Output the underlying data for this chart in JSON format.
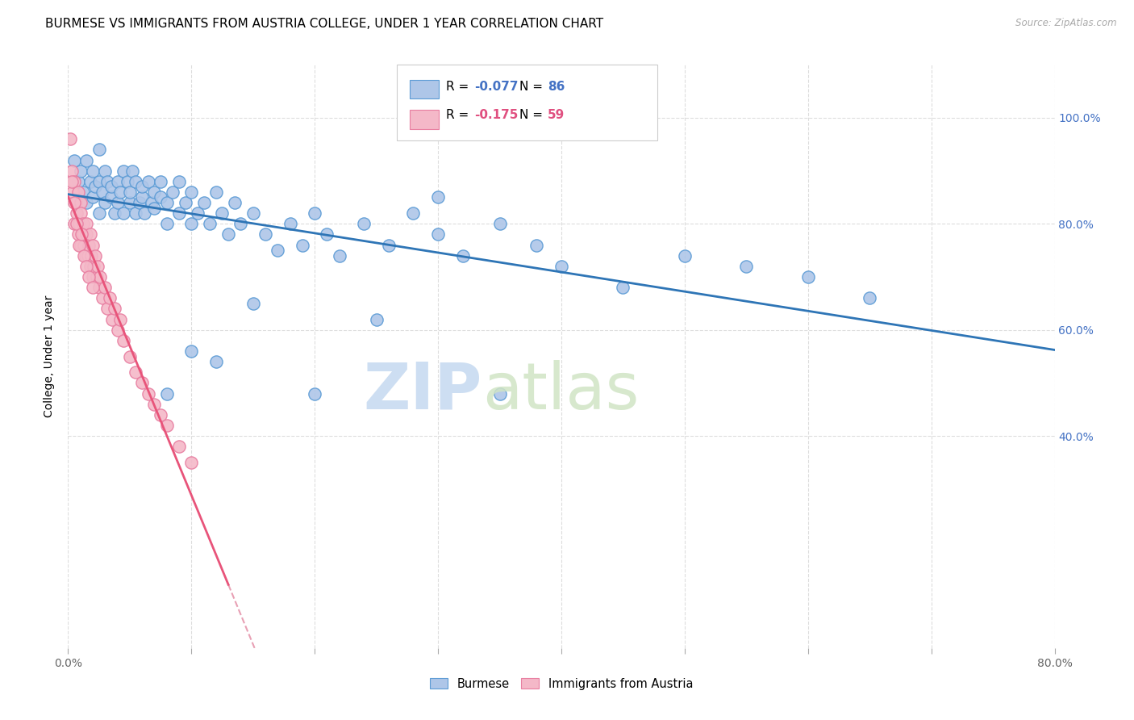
{
  "title": "BURMESE VS IMMIGRANTS FROM AUSTRIA COLLEGE, UNDER 1 YEAR CORRELATION CHART",
  "source": "Source: ZipAtlas.com",
  "ylabel_label": "College, Under 1 year",
  "blue_R": -0.077,
  "blue_N": 86,
  "pink_R": -0.175,
  "pink_N": 59,
  "blue_color": "#AEC6E8",
  "blue_edge_color": "#5B9BD5",
  "pink_color": "#F4B8C8",
  "pink_edge_color": "#E87DA0",
  "blue_line_color": "#2E75B6",
  "pink_line_color": "#E8547A",
  "dashed_line_color": "#E8A0B4",
  "watermark_zip_color": "#C5D9F0",
  "watermark_atlas_color": "#D0E8C5",
  "right_axis_color": "#4472C4",
  "xmin": 0.0,
  "xmax": 0.8,
  "ymin": 0.0,
  "ymax": 1.1,
  "blue_scatter_x": [
    0.005,
    0.008,
    0.01,
    0.012,
    0.015,
    0.015,
    0.018,
    0.02,
    0.02,
    0.022,
    0.025,
    0.025,
    0.025,
    0.028,
    0.03,
    0.03,
    0.032,
    0.035,
    0.035,
    0.038,
    0.04,
    0.04,
    0.042,
    0.045,
    0.045,
    0.048,
    0.05,
    0.05,
    0.052,
    0.055,
    0.055,
    0.058,
    0.06,
    0.06,
    0.062,
    0.065,
    0.068,
    0.07,
    0.07,
    0.075,
    0.075,
    0.08,
    0.08,
    0.085,
    0.09,
    0.09,
    0.095,
    0.1,
    0.1,
    0.105,
    0.11,
    0.115,
    0.12,
    0.125,
    0.13,
    0.135,
    0.14,
    0.15,
    0.16,
    0.17,
    0.18,
    0.19,
    0.2,
    0.21,
    0.22,
    0.24,
    0.26,
    0.28,
    0.3,
    0.32,
    0.35,
    0.38,
    0.4,
    0.45,
    0.5,
    0.55,
    0.6,
    0.65,
    0.3,
    0.25,
    0.2,
    0.15,
    0.12,
    0.1,
    0.08,
    0.35
  ],
  "blue_scatter_y": [
    0.92,
    0.88,
    0.9,
    0.86,
    0.84,
    0.92,
    0.88,
    0.85,
    0.9,
    0.87,
    0.82,
    0.88,
    0.94,
    0.86,
    0.84,
    0.9,
    0.88,
    0.85,
    0.87,
    0.82,
    0.88,
    0.84,
    0.86,
    0.9,
    0.82,
    0.88,
    0.84,
    0.86,
    0.9,
    0.82,
    0.88,
    0.84,
    0.85,
    0.87,
    0.82,
    0.88,
    0.84,
    0.86,
    0.83,
    0.85,
    0.88,
    0.84,
    0.8,
    0.86,
    0.82,
    0.88,
    0.84,
    0.8,
    0.86,
    0.82,
    0.84,
    0.8,
    0.86,
    0.82,
    0.78,
    0.84,
    0.8,
    0.82,
    0.78,
    0.75,
    0.8,
    0.76,
    0.82,
    0.78,
    0.74,
    0.8,
    0.76,
    0.82,
    0.78,
    0.74,
    0.8,
    0.76,
    0.72,
    0.68,
    0.74,
    0.72,
    0.7,
    0.66,
    0.85,
    0.62,
    0.48,
    0.65,
    0.54,
    0.56,
    0.48,
    0.48
  ],
  "pink_scatter_x": [
    0.002,
    0.003,
    0.004,
    0.005,
    0.005,
    0.006,
    0.007,
    0.008,
    0.008,
    0.009,
    0.01,
    0.01,
    0.01,
    0.012,
    0.012,
    0.013,
    0.014,
    0.015,
    0.015,
    0.016,
    0.017,
    0.018,
    0.018,
    0.019,
    0.02,
    0.02,
    0.021,
    0.022,
    0.023,
    0.024,
    0.025,
    0.026,
    0.028,
    0.03,
    0.032,
    0.034,
    0.036,
    0.038,
    0.04,
    0.042,
    0.045,
    0.05,
    0.055,
    0.06,
    0.065,
    0.07,
    0.075,
    0.08,
    0.09,
    0.1,
    0.003,
    0.005,
    0.007,
    0.009,
    0.011,
    0.013,
    0.015,
    0.017,
    0.02
  ],
  "pink_scatter_y": [
    0.96,
    0.9,
    0.86,
    0.88,
    0.8,
    0.84,
    0.82,
    0.78,
    0.86,
    0.8,
    0.84,
    0.76,
    0.82,
    0.78,
    0.8,
    0.76,
    0.74,
    0.78,
    0.8,
    0.74,
    0.76,
    0.72,
    0.78,
    0.74,
    0.76,
    0.7,
    0.72,
    0.74,
    0.7,
    0.72,
    0.68,
    0.7,
    0.66,
    0.68,
    0.64,
    0.66,
    0.62,
    0.64,
    0.6,
    0.62,
    0.58,
    0.55,
    0.52,
    0.5,
    0.48,
    0.46,
    0.44,
    0.42,
    0.38,
    0.35,
    0.88,
    0.84,
    0.8,
    0.76,
    0.78,
    0.74,
    0.72,
    0.7,
    0.68
  ],
  "title_fontsize": 11,
  "axis_label_fontsize": 10,
  "tick_fontsize": 10
}
